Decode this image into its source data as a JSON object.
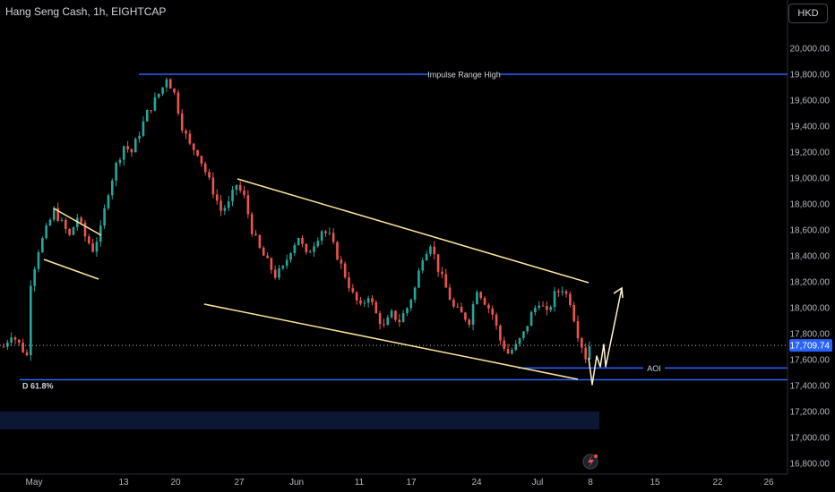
{
  "header": {
    "title": "Hang Seng Cash, 1h, EIGHTCAP",
    "currency": "HKD"
  },
  "chart_data": {
    "type": "candlestick",
    "symbol": "Hang Seng Cash",
    "timeframe": "1h",
    "broker": "EIGHTCAP",
    "y_ticks": [
      20000,
      19800,
      19600,
      19400,
      19200,
      19000,
      18800,
      18600,
      18400,
      18200,
      18000,
      17800,
      17600,
      17400,
      17200,
      17000,
      16800
    ],
    "y_tick_labels": [
      "20,000.00",
      "19,800.00",
      "19,600.00",
      "19,400.00",
      "19,200.00",
      "19,000.00",
      "18,800.00",
      "18,600.00",
      "18,400.00",
      "18,200.00",
      "18,000.00",
      "17,800.00",
      "17,600.00",
      "17,400.00",
      "17,200.00",
      "17,000.00",
      "16,800.00"
    ],
    "x_ticks": [
      "May",
      "13",
      "20",
      "27",
      "Jun",
      "11",
      "17",
      "24",
      "Jul",
      "8",
      "15",
      "22",
      "26"
    ],
    "current_price": 17709.74,
    "current_price_label": "17,709.74",
    "colors": {
      "up": "#26a69a",
      "down": "#ef5350",
      "level": "#2962ff",
      "trendline": "#ffe599",
      "projection": "#fff2cc",
      "zone": "#0c1733",
      "price_badge": "#2962ff"
    },
    "price_path": [
      [
        0,
        17700
      ],
      [
        2,
        17800
      ],
      [
        4,
        17720
      ],
      [
        6,
        17630
      ],
      [
        7,
        18200
      ],
      [
        9,
        18450
      ],
      [
        11,
        18600
      ],
      [
        13,
        18750
      ],
      [
        15,
        18650
      ],
      [
        17,
        18550
      ],
      [
        19,
        18700
      ],
      [
        21,
        18550
      ],
      [
        23,
        18450
      ],
      [
        25,
        18600
      ],
      [
        27,
        18900
      ],
      [
        29,
        19100
      ],
      [
        31,
        19250
      ],
      [
        33,
        19200
      ],
      [
        35,
        19350
      ],
      [
        37,
        19500
      ],
      [
        39,
        19600
      ],
      [
        41,
        19700
      ],
      [
        42,
        19780
      ],
      [
        44,
        19650
      ],
      [
        46,
        19400
      ],
      [
        48,
        19250
      ],
      [
        50,
        19200
      ],
      [
        52,
        19050
      ],
      [
        54,
        18900
      ],
      [
        56,
        18750
      ],
      [
        58,
        18800
      ],
      [
        60,
        18950
      ],
      [
        62,
        18850
      ],
      [
        64,
        18600
      ],
      [
        66,
        18450
      ],
      [
        68,
        18350
      ],
      [
        70,
        18250
      ],
      [
        72,
        18300
      ],
      [
        74,
        18450
      ],
      [
        76,
        18550
      ],
      [
        78,
        18400
      ],
      [
        80,
        18500
      ],
      [
        82,
        18600
      ],
      [
        84,
        18550
      ],
      [
        86,
        18400
      ],
      [
        88,
        18250
      ],
      [
        90,
        18100
      ],
      [
        92,
        18000
      ],
      [
        94,
        18100
      ],
      [
        96,
        17950
      ],
      [
        98,
        17850
      ],
      [
        100,
        17950
      ],
      [
        102,
        17900
      ],
      [
        104,
        18000
      ],
      [
        106,
        18150
      ],
      [
        108,
        18400
      ],
      [
        110,
        18500
      ],
      [
        112,
        18300
      ],
      [
        114,
        18150
      ],
      [
        116,
        18000
      ],
      [
        118,
        17950
      ],
      [
        120,
        17900
      ],
      [
        122,
        18150
      ],
      [
        124,
        18050
      ],
      [
        126,
        17950
      ],
      [
        128,
        17750
      ],
      [
        130,
        17650
      ],
      [
        132,
        17700
      ],
      [
        134,
        17800
      ],
      [
        136,
        17950
      ],
      [
        138,
        18050
      ],
      [
        140,
        17950
      ],
      [
        142,
        18100
      ],
      [
        144,
        18150
      ],
      [
        146,
        18050
      ],
      [
        148,
        17800
      ],
      [
        150,
        17620
      ],
      [
        151,
        17709.74
      ]
    ],
    "annotations": [
      {
        "type": "hline",
        "label": "Impulse Range High",
        "y": 19800
      },
      {
        "type": "hline",
        "label": "AOI",
        "y": 17535
      },
      {
        "type": "hline",
        "label": "D 61.8%",
        "y": 17445
      }
    ],
    "channel_upper": [
      [
        265,
        200
      ],
      [
        657,
        316
      ]
    ],
    "channel_lower": [
      [
        228,
        340
      ],
      [
        645,
        424
      ]
    ],
    "flag_upper": [
      [
        60,
        233
      ],
      [
        113,
        263
      ]
    ],
    "flag_lower": [
      [
        49,
        290
      ],
      [
        110,
        312
      ]
    ],
    "projection": [
      [
        657,
        400
      ],
      [
        661,
        430
      ],
      [
        666,
        398
      ],
      [
        670,
        410
      ],
      [
        674,
        385
      ],
      [
        676,
        410
      ],
      [
        694,
        322
      ]
    ]
  }
}
